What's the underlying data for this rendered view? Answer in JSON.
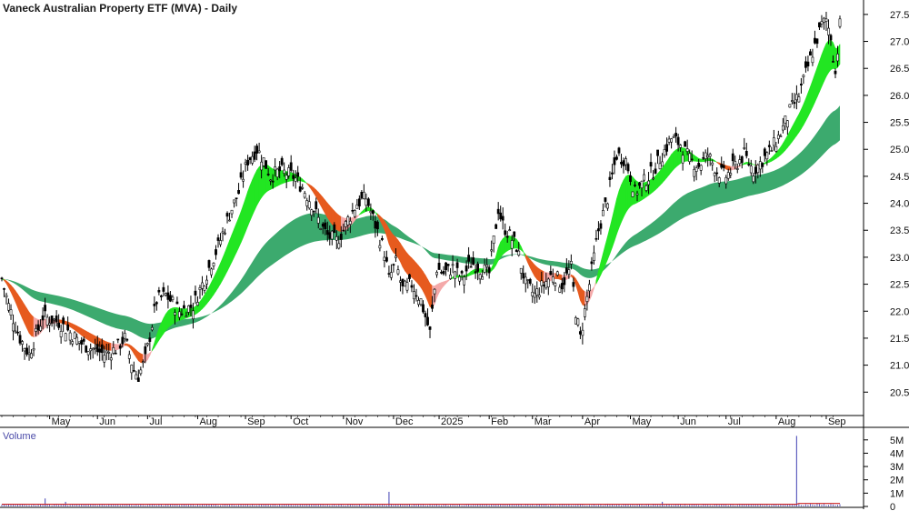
{
  "chart_data": {
    "type": "candlestick",
    "title": "Vaneck Australian Property ETF (MVA) - Daily",
    "price_axis": {
      "ylim": [
        20.1,
        27.7
      ],
      "ticks": [
        20.5,
        21.0,
        21.5,
        22.0,
        22.5,
        23.0,
        23.5,
        24.0,
        24.5,
        25.0,
        25.5,
        26.0,
        26.5,
        27.0,
        27.5
      ],
      "tick_labels": [
        "20.5",
        "21.0",
        "21.5",
        "22.0",
        "22.5",
        "23.0",
        "23.5",
        "24.0",
        "24.5",
        "25.0",
        "25.5",
        "26.0",
        "26.5",
        "27.0",
        "27.5"
      ]
    },
    "time_axis": {
      "labels": [
        "May",
        "Jun",
        "Jul",
        "Aug",
        "Sep",
        "Oct",
        "Nov",
        "Dec",
        "2025",
        "Feb",
        "Mar",
        "Apr",
        "May",
        "Jun",
        "Jul",
        "Aug",
        "Sep"
      ],
      "positions": [
        21,
        42,
        64,
        86,
        107,
        127,
        150,
        172,
        192,
        214,
        233,
        255,
        276,
        297,
        318,
        340,
        362
      ]
    },
    "price_anchors": {
      "t": [
        0,
        3,
        8,
        12,
        18,
        25,
        30,
        35,
        40,
        45,
        50,
        54,
        58,
        60,
        63,
        68,
        72,
        78,
        84,
        90,
        95,
        100,
        104,
        108,
        112,
        115,
        118,
        122,
        128,
        132,
        136,
        140,
        143,
        147,
        150,
        152,
        156,
        160,
        164,
        168,
        170,
        173,
        176,
        180,
        184,
        188,
        191,
        194,
        198,
        202,
        206,
        210,
        214,
        218,
        220,
        223,
        226,
        230,
        234,
        238,
        242,
        246,
        250,
        252,
        254,
        256,
        258,
        262,
        266,
        270,
        274,
        278,
        282,
        286,
        290,
        294,
        298,
        302,
        306,
        310,
        314,
        318,
        322,
        326,
        330,
        334,
        338,
        342,
        346,
        350,
        353,
        356,
        360,
        362,
        364,
        366,
        368
      ],
      "close": [
        22.6,
        22.1,
        21.5,
        21.2,
        21.9,
        21.8,
        21.6,
        21.4,
        21.3,
        21.2,
        21.3,
        21.5,
        20.9,
        20.8,
        21.1,
        22.2,
        22.3,
        22.0,
        22.1,
        22.7,
        23.2,
        23.8,
        24.2,
        24.8,
        25.0,
        24.8,
        24.5,
        24.6,
        24.5,
        24.3,
        24.0,
        23.6,
        23.4,
        23.3,
        23.5,
        23.7,
        24.0,
        24.1,
        23.6,
        23.1,
        22.6,
        22.9,
        22.4,
        22.5,
        22.2,
        21.6,
        22.8,
        22.7,
        22.8,
        22.6,
        22.9,
        22.8,
        22.7,
        23.9,
        23.6,
        23.4,
        23.2,
        22.5,
        22.3,
        22.5,
        22.7,
        22.5,
        22.8,
        22.0,
        21.5,
        22.0,
        22.5,
        23.5,
        24.1,
        24.9,
        24.8,
        24.2,
        24.4,
        24.6,
        24.9,
        25.2,
        25.1,
        24.8,
        24.7,
        24.9,
        24.6,
        24.5,
        24.7,
        24.9,
        24.6,
        24.8,
        25.0,
        25.3,
        25.7,
        26.0,
        26.4,
        26.8,
        27.3,
        27.4,
        27.1,
        26.4,
        27.3
      ]
    },
    "moving_averages": [
      {
        "type": "short-ribbon",
        "colors": [
          "#22e622",
          "#e65a1e"
        ]
      },
      {
        "type": "long-ribbon",
        "colors": [
          "#3caa6e"
        ]
      }
    ],
    "volume_axis": {
      "ylim": [
        0,
        5600000
      ],
      "ticks": [
        0,
        1000000,
        2000000,
        3000000,
        4000000,
        5000000
      ],
      "tick_labels": [
        "0",
        "1M",
        "2M",
        "3M",
        "4M",
        "5M"
      ],
      "label": "Volume"
    },
    "volume_spikes": [
      {
        "t": 19,
        "value": 600000
      },
      {
        "t": 28,
        "value": 350000
      },
      {
        "t": 170,
        "value": 1100000
      },
      {
        "t": 290,
        "value": 350000
      },
      {
        "t": 349,
        "value": 5300000
      }
    ],
    "volume_baseline": 150000,
    "colors": {
      "candle": "#000000",
      "ribbon_fast_up": "#22e622",
      "ribbon_fast_down": "#e65a1e",
      "ribbon_fast_down_light": "#f4a9a9",
      "ribbon_slow": "#3caa6e",
      "volume_bar": "#6060c0",
      "volume_line": "#cc2222",
      "grid": "#b0b0b0",
      "axis": "#000000"
    }
  }
}
